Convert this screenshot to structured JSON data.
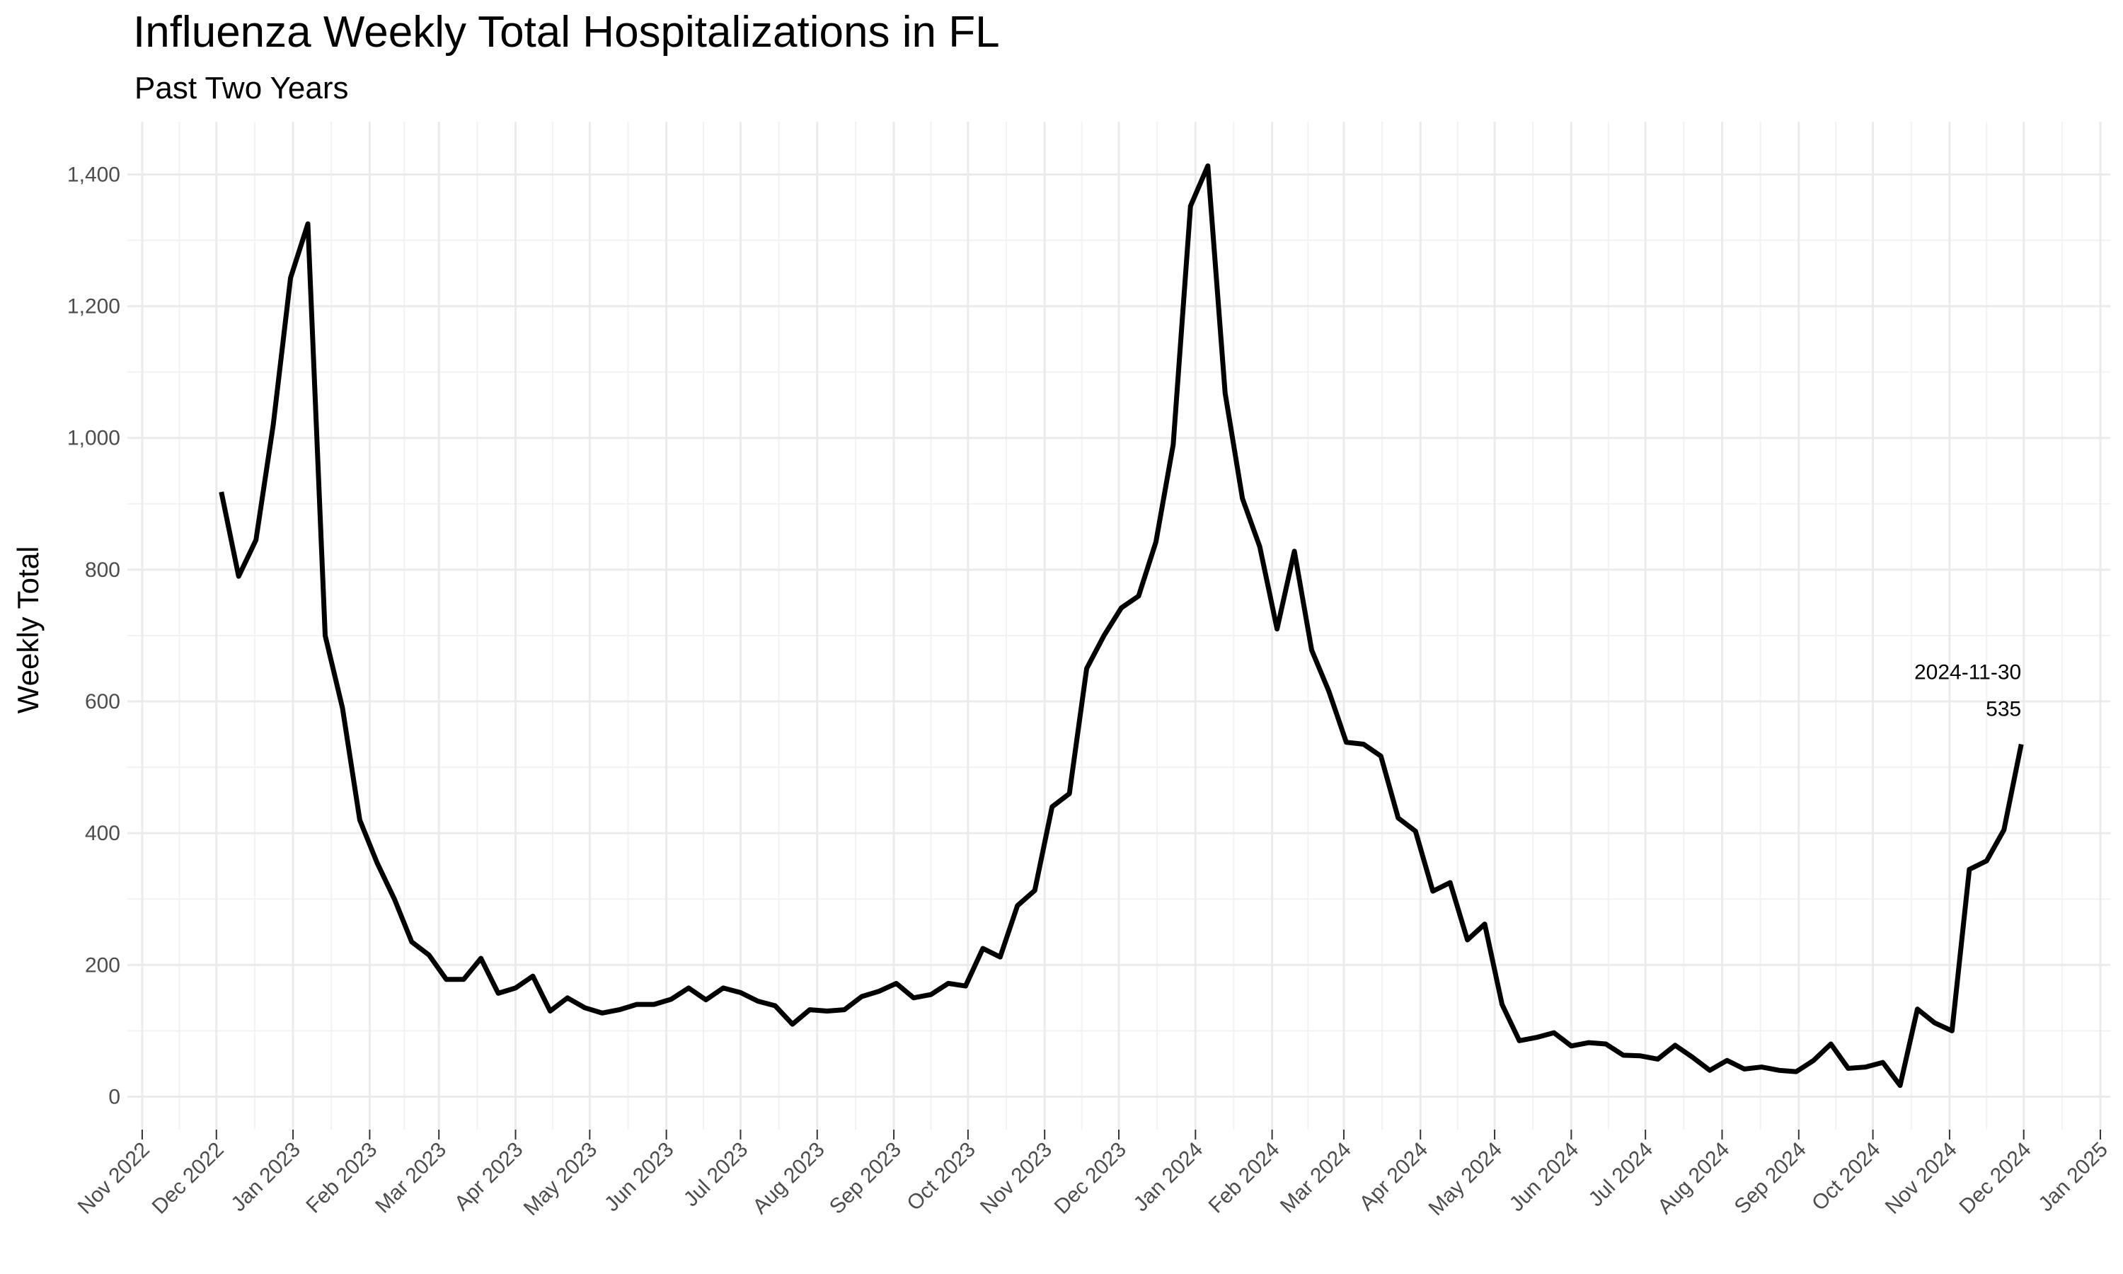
{
  "chart_data": {
    "type": "line",
    "title": "Influenza Weekly Total Hospitalizations in FL",
    "subtitle": "Past Two Years",
    "xlabel": "",
    "ylabel": "Weekly Total",
    "xlim": [
      "2022-10-26",
      "2025-01-05"
    ],
    "ylim": [
      -50,
      1480
    ],
    "grid": true,
    "line_color": "#000000",
    "y_ticks": [
      0,
      200,
      400,
      600,
      800,
      1000,
      1200,
      1400
    ],
    "y_tick_labels": [
      "0",
      "200",
      "400",
      "600",
      "800",
      "1,000",
      "1,200",
      "1,400"
    ],
    "x_ticks": [
      "2022-11-01",
      "2022-12-01",
      "2023-01-01",
      "2023-02-01",
      "2023-03-01",
      "2023-04-01",
      "2023-05-01",
      "2023-06-01",
      "2023-07-01",
      "2023-08-01",
      "2023-09-01",
      "2023-10-01",
      "2023-11-01",
      "2023-12-01",
      "2024-01-01",
      "2024-02-01",
      "2024-03-01",
      "2024-04-01",
      "2024-05-01",
      "2024-06-01",
      "2024-07-01",
      "2024-08-01",
      "2024-09-01",
      "2024-10-01",
      "2024-11-01",
      "2024-12-01",
      "2025-01-01"
    ],
    "x_tick_labels": [
      "Nov 2022",
      "Dec 2022",
      "Jan 2023",
      "Feb 2023",
      "Mar 2023",
      "Apr 2023",
      "May 2023",
      "Jun 2023",
      "Jul 2023",
      "Aug 2023",
      "Sep 2023",
      "Oct 2023",
      "Nov 2023",
      "Dec 2023",
      "Jan 2024",
      "Feb 2024",
      "Mar 2024",
      "Apr 2024",
      "May 2024",
      "Jun 2024",
      "Jul 2024",
      "Aug 2024",
      "Sep 2024",
      "Oct 2024",
      "Nov 2024",
      "Dec 2024",
      "Jan 2025"
    ],
    "x_start": "2022-12-03",
    "x_step_days": 7,
    "values": [
      918,
      790,
      845,
      1020,
      1243,
      1325,
      700,
      590,
      420,
      355,
      300,
      235,
      215,
      178,
      178,
      210,
      157,
      165,
      183,
      130,
      150,
      135,
      127,
      132,
      140,
      140,
      148,
      165,
      147,
      165,
      158,
      145,
      138,
      110,
      132,
      130,
      132,
      152,
      160,
      172,
      150,
      155,
      172,
      168,
      225,
      212,
      290,
      313,
      440,
      460,
      650,
      700,
      742,
      760,
      842,
      990,
      1352,
      1413,
      1068,
      908,
      835,
      710,
      828,
      678,
      615,
      538,
      535,
      517,
      423,
      403,
      312,
      325,
      238,
      262,
      140,
      85,
      90,
      97,
      77,
      82,
      80,
      63,
      62,
      57,
      78,
      60,
      40,
      55,
      42,
      45,
      40,
      38,
      55,
      80,
      43,
      45,
      52,
      17,
      133,
      112,
      100,
      345,
      358,
      405,
      535
    ],
    "annotation": {
      "date": "2024-11-30",
      "value": "535"
    }
  }
}
